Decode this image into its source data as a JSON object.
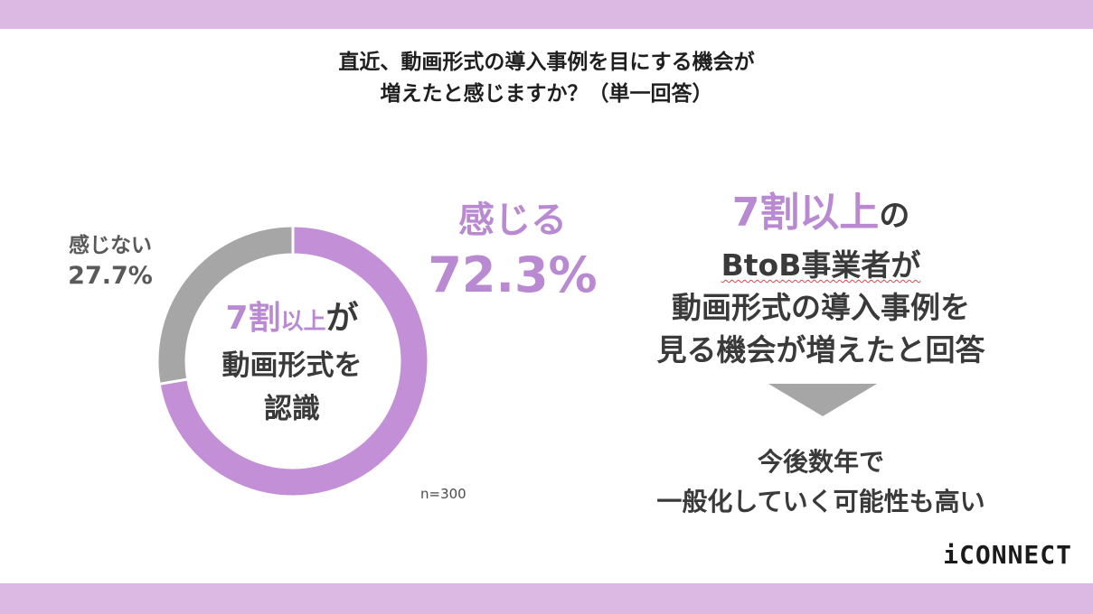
{
  "title": {
    "line1": "直近、動画形式の導入事例を目にする機会が",
    "line2": "増えたと感じますか？（単一回答）"
  },
  "chart_data": {
    "type": "pie",
    "categories": [
      "感じる",
      "感じない"
    ],
    "values": [
      72.3,
      27.7
    ],
    "colors": [
      "#c38fd6",
      "#a6a6a6"
    ],
    "labels": {
      "yes_text": "感じる",
      "yes_value": "72.3%",
      "no_text": "感じない",
      "no_value": "27.7%"
    },
    "n": "n=300"
  },
  "center": {
    "highlight": "7割",
    "small": "以上",
    "suffix": "が",
    "line2": "動画形式を",
    "line3": "認識"
  },
  "right": {
    "highlight": "7割以上",
    "suffix": "の",
    "line2": "BtoB事業者が",
    "line3": "動画形式の導入事例を",
    "line4": "見る機会が増えたと回答"
  },
  "conclusion": {
    "line1": "今後数年で",
    "line2": "一般化していく可能性も高い"
  },
  "logo": "iCONNECT",
  "colors": {
    "accent": "#b98ad1",
    "band": "#dcb9e3",
    "gray": "#a6a6a6"
  }
}
